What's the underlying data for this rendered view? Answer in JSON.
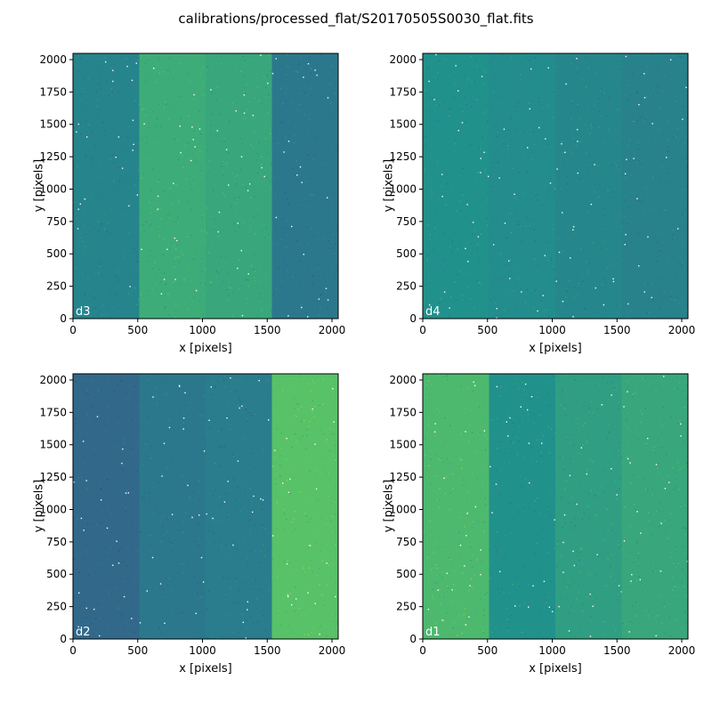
{
  "figure": {
    "title": "calibrations/processed_flat/S20170505S0030_flat.fits"
  },
  "colors": {
    "background": "#ffffff",
    "axis": "#000000",
    "label_text": "#ffffff",
    "colormap": [
      "#440154",
      "#3b528b",
      "#21918c",
      "#5ec962",
      "#fde725"
    ],
    "panel_base": {
      "d3": "#2a9a88",
      "d4": "#24908c",
      "d2": "#2c7c8e",
      "d1": "#2fa586"
    }
  },
  "chart_data": [
    {
      "type": "heatmap",
      "id": "d3",
      "label": "d3",
      "xlabel": "x [pixels]",
      "ylabel": "y [pixels]",
      "xlim": [
        0,
        2048
      ],
      "ylim": [
        0,
        2048
      ],
      "xticks": [
        0,
        500,
        1000,
        1500,
        2000
      ],
      "yticks": [
        0,
        250,
        500,
        750,
        1000,
        1250,
        1500,
        1750,
        2000
      ],
      "grid": false,
      "amplifier_columns": [
        {
          "x_range": [
            0,
            512
          ],
          "level": 0.45
        },
        {
          "x_range": [
            512,
            1024
          ],
          "level": 0.62
        },
        {
          "x_range": [
            1024,
            1536
          ],
          "level": 0.6
        },
        {
          "x_range": [
            1536,
            2048
          ],
          "level": 0.4
        }
      ]
    },
    {
      "type": "heatmap",
      "id": "d4",
      "label": "d4",
      "xlabel": "x [pixels]",
      "ylabel": "y [pixels]",
      "xlim": [
        0,
        2048
      ],
      "ylim": [
        0,
        2048
      ],
      "xticks": [
        0,
        500,
        1000,
        1500,
        2000
      ],
      "yticks": [
        0,
        250,
        500,
        750,
        1000,
        1250,
        1500,
        1750,
        2000
      ],
      "grid": false,
      "amplifier_columns": [
        {
          "x_range": [
            0,
            512
          ],
          "level": 0.5
        },
        {
          "x_range": [
            512,
            1024
          ],
          "level": 0.48
        },
        {
          "x_range": [
            1024,
            1536
          ],
          "level": 0.46
        },
        {
          "x_range": [
            1536,
            2048
          ],
          "level": 0.44
        }
      ]
    },
    {
      "type": "heatmap",
      "id": "d2",
      "label": "d2",
      "xlabel": "x [pixels]",
      "ylabel": "y [pixels]",
      "xlim": [
        0,
        2048
      ],
      "ylim": [
        0,
        2048
      ],
      "xticks": [
        0,
        500,
        1000,
        1500,
        2000
      ],
      "yticks": [
        0,
        250,
        500,
        750,
        1000,
        1250,
        1500,
        1750,
        2000
      ],
      "grid": false,
      "amplifier_columns": [
        {
          "x_range": [
            0,
            512
          ],
          "level": 0.34
        },
        {
          "x_range": [
            512,
            1024
          ],
          "level": 0.4
        },
        {
          "x_range": [
            1024,
            1536
          ],
          "level": 0.42
        },
        {
          "x_range": [
            1536,
            2048
          ],
          "level": 0.72
        }
      ]
    },
    {
      "type": "heatmap",
      "id": "d1",
      "label": "d1",
      "xlabel": "x [pixels]",
      "ylabel": "y [pixels]",
      "xlim": [
        0,
        2048
      ],
      "ylim": [
        0,
        2048
      ],
      "xticks": [
        0,
        500,
        1000,
        1500,
        2000
      ],
      "yticks": [
        0,
        250,
        500,
        750,
        1000,
        1250,
        1500,
        1750,
        2000
      ],
      "grid": false,
      "amplifier_columns": [
        {
          "x_range": [
            0,
            512
          ],
          "level": 0.68
        },
        {
          "x_range": [
            512,
            1024
          ],
          "level": 0.5
        },
        {
          "x_range": [
            1024,
            1536
          ],
          "level": 0.56
        },
        {
          "x_range": [
            1536,
            2048
          ],
          "level": 0.6
        }
      ]
    }
  ]
}
